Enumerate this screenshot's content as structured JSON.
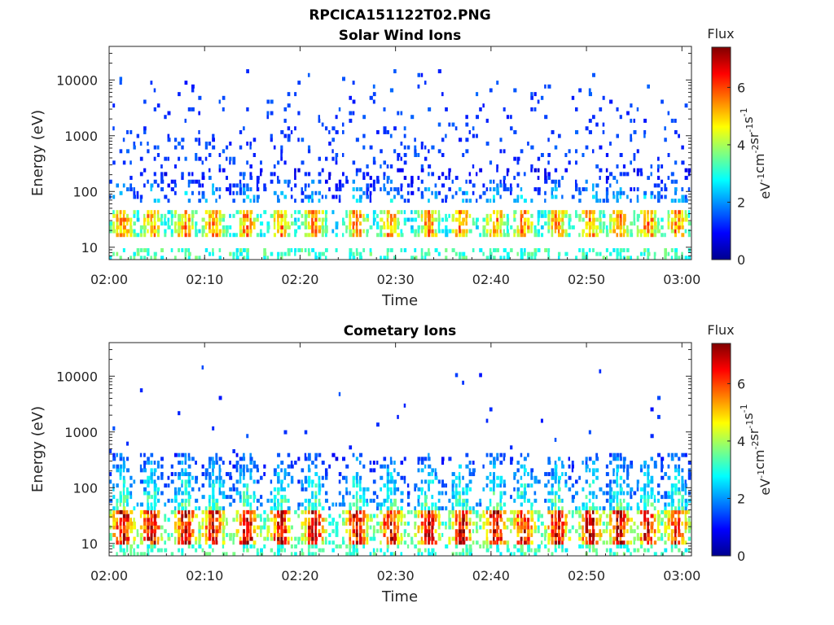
{
  "figure_title": "RPCICA151122T02.PNG",
  "colors": {
    "colormap": "jet",
    "colormap_stops": [
      "#00008f",
      "#0000ff",
      "#00ffff",
      "#ffff00",
      "#ff0000",
      "#800000"
    ]
  },
  "chart_data": [
    {
      "type": "heatmap",
      "title": "Solar Wind Ions",
      "xlabel": "Time",
      "ylabel": "Energy (eV)",
      "yscale": "log",
      "x_range": [
        "02:00",
        "03:01"
      ],
      "ylim": [
        6,
        40000
      ],
      "x_ticks": [
        "02:00",
        "02:10",
        "02:20",
        "02:30",
        "02:40",
        "02:50",
        "03:00"
      ],
      "y_ticks": [
        "10",
        "100",
        "1000",
        "10000"
      ],
      "colorbar": {
        "title": "Flux",
        "unit": "eV",
        "unit_parts": [
          "eV",
          "-1",
          "cm",
          "-2",
          "sr",
          "-1",
          "s",
          "-1"
        ],
        "range": [
          0,
          7.4
        ],
        "ticks": [
          "0",
          "2",
          "4",
          "6"
        ]
      },
      "pulse_times_min": [
        1.5,
        4.5,
        8,
        11,
        14.5,
        18,
        21.5,
        26,
        29.5,
        33.5,
        37,
        40.5,
        43.5,
        47,
        50.5,
        53.5,
        56.5,
        59.5
      ],
      "bands": [
        {
          "energy_range_ev": [
            15,
            45
          ],
          "peak_flux": 5.5
        },
        {
          "energy_range_ev": [
            60,
            250
          ],
          "peak_flux": 2.6
        },
        {
          "energy_range_ev": [
            250,
            15000
          ],
          "peak_flux": 1.3
        }
      ]
    },
    {
      "type": "heatmap",
      "title": "Cometary Ions",
      "xlabel": "Time",
      "ylabel": "Energy (eV)",
      "yscale": "log",
      "x_range": [
        "02:00",
        "03:01"
      ],
      "ylim": [
        6,
        40000
      ],
      "x_ticks": [
        "02:00",
        "02:10",
        "02:20",
        "02:30",
        "02:40",
        "02:50",
        "03:00"
      ],
      "y_ticks": [
        "10",
        "100",
        "1000",
        "10000"
      ],
      "colorbar": {
        "title": "Flux",
        "unit": "eV",
        "unit_parts": [
          "eV",
          "-1",
          "cm",
          "-2",
          "sr",
          "-1",
          "s",
          "-1"
        ],
        "range": [
          0,
          7.4
        ],
        "ticks": [
          "0",
          "2",
          "4",
          "6"
        ]
      },
      "pulse_times_min": [
        1.5,
        4.5,
        8,
        11,
        14.5,
        18,
        21.5,
        26,
        29.5,
        33.5,
        37,
        40.5,
        43.5,
        47,
        50.5,
        53.5,
        56.5,
        59.5
      ],
      "bands": [
        {
          "energy_range_ev": [
            10,
            40
          ],
          "peak_flux": 6.8
        },
        {
          "energy_range_ev": [
            40,
            400
          ],
          "peak_flux": 3.5
        },
        {
          "energy_range_ev": [
            400,
            15000
          ],
          "peak_flux": 1.2
        }
      ]
    }
  ]
}
